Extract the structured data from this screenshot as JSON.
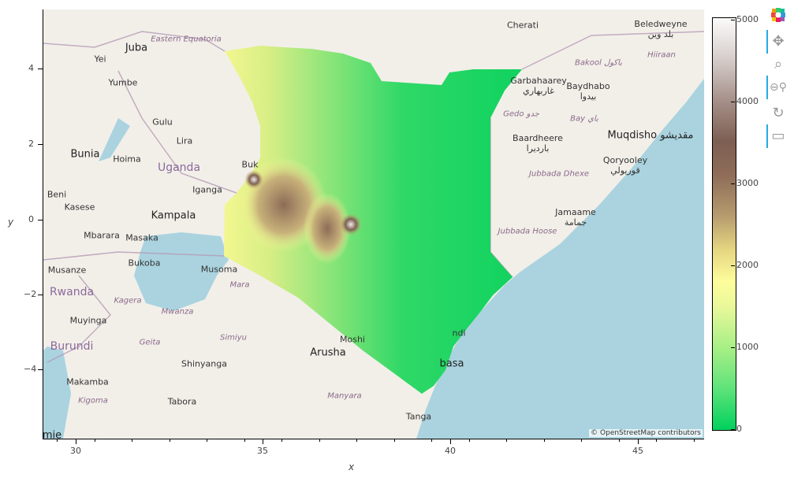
{
  "plot": {
    "xlabel": "x",
    "ylabel": "y",
    "x_ticks": [
      "30",
      "35",
      "40",
      "45"
    ],
    "y_ticks": [
      "4",
      "2",
      "0",
      "−2",
      "−4"
    ],
    "attribution": "© OpenStreetMap contributors",
    "basemap": "OpenStreetMap",
    "raster": "Kenya elevation"
  },
  "colorbar": {
    "ticks": [
      "5000",
      "4000",
      "3000",
      "2000",
      "1000",
      "0"
    ],
    "range": [
      0,
      5000
    ],
    "colors": [
      "#00d15c",
      "#a8ef86",
      "#fefd9c",
      "#8e6c58",
      "#fbfbfa"
    ]
  },
  "map_labels": [
    "Juba",
    "Yei",
    "Yumbe",
    "Gulu",
    "Lira",
    "Bunia",
    "Hoima",
    "Uganda",
    "Iganga",
    "Beni",
    "Kasese",
    "Kampala",
    "Mbarara",
    "Masaka",
    "Bukoba",
    "Musoma",
    "Musanze",
    "Rwanda",
    "Muyinga",
    "Burundi",
    "Shinyanga",
    "Arusha",
    "Moshi",
    "Tabora",
    "Makamba",
    "Tanga",
    "Cherati",
    "Beledweyne\nبلد وين",
    "Garbahaarey\nغاربهاري",
    "Baydhabo\nبيدوا",
    "Baardheere\nبارديرا",
    "Muqdisho مقديشو",
    "Qoryooley\nقوريولي",
    "Jamaame\nجمامة",
    "Eastern Equatoria",
    "Kagera",
    "Mwanza",
    "Geita",
    "Simiyu",
    "Mara",
    "Manyara",
    "Kigoma",
    "Bakool باكول",
    "Hiiraan",
    "Gedo جدو",
    "Bay باي",
    "Jubbada Dhexe",
    "Jubbada Hoose",
    "Buk",
    "ndi",
    "basa",
    "emie"
  ],
  "toolbar": {
    "tools": [
      "bokeh-logo",
      "pan-tool",
      "box-zoom-tool",
      "wheel-zoom-tool",
      "reset-tool",
      "hover-tool"
    ]
  }
}
